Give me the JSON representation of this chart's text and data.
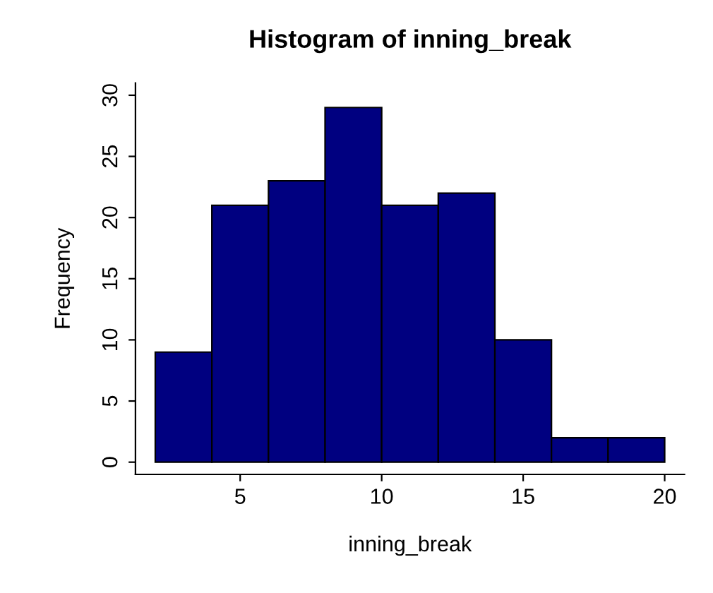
{
  "chart_data": {
    "type": "histogram",
    "title": "Histogram of inning_break",
    "xlabel": "inning_break",
    "ylabel": "Frequency",
    "bins": [
      2,
      4,
      6,
      8,
      10,
      12,
      14,
      16,
      18,
      20
    ],
    "values": [
      9,
      21,
      23,
      29,
      21,
      22,
      10,
      2,
      2
    ],
    "color": "#000080",
    "xlim": [
      1.3,
      20.7
    ],
    "ylim": [
      -1,
      31
    ],
    "xticks": [
      5,
      10,
      15,
      20
    ],
    "yticks": [
      0,
      5,
      10,
      15,
      20,
      25,
      30
    ],
    "grid": false
  }
}
